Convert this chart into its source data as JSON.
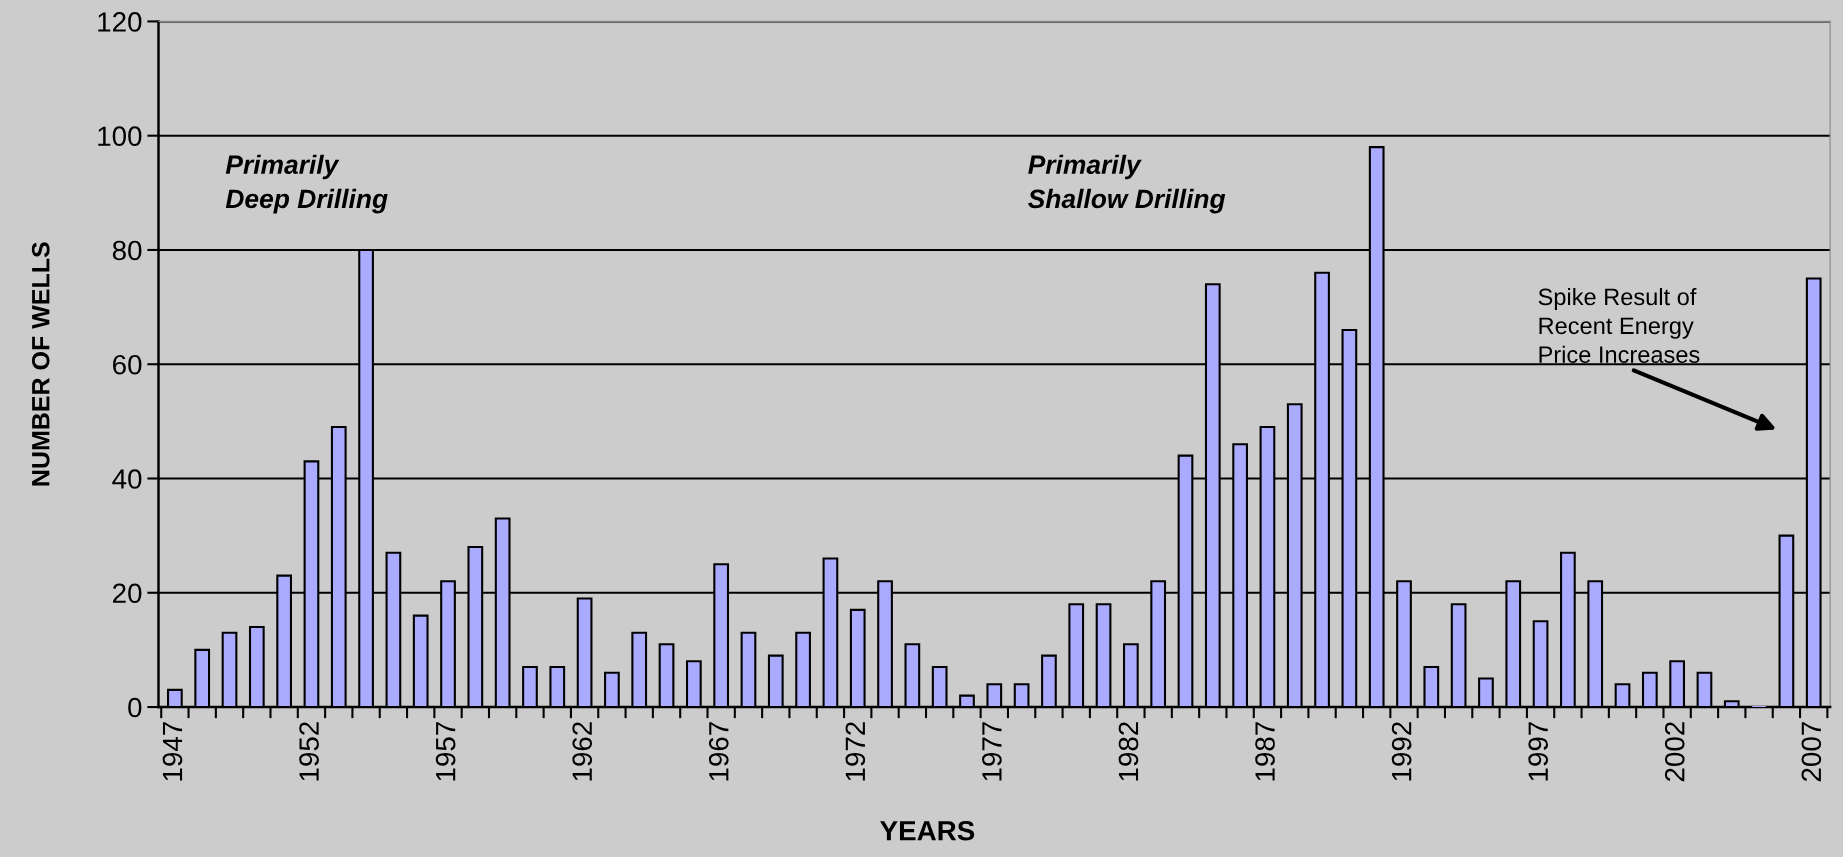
{
  "chart_data": {
    "type": "bar",
    "categories": [
      "1947",
      null,
      null,
      null,
      null,
      "1952",
      null,
      null,
      null,
      null,
      "1957",
      null,
      null,
      null,
      null,
      "1962",
      null,
      null,
      null,
      null,
      "1967",
      null,
      null,
      null,
      null,
      "1972",
      null,
      null,
      null,
      null,
      "1977",
      null,
      null,
      null,
      null,
      "1982",
      null,
      null,
      null,
      null,
      "1987",
      null,
      null,
      null,
      null,
      "1992",
      null,
      null,
      null,
      null,
      "1997",
      null,
      null,
      null,
      null,
      "2002",
      null,
      null,
      null,
      null,
      "2007"
    ],
    "values": [
      3,
      10,
      13,
      14,
      23,
      43,
      49,
      80,
      27,
      16,
      22,
      28,
      33,
      7,
      7,
      19,
      6,
      13,
      11,
      8,
      25,
      13,
      9,
      13,
      26,
      17,
      22,
      11,
      7,
      2,
      4,
      4,
      9,
      18,
      18,
      11,
      22,
      44,
      74,
      46,
      49,
      53,
      76,
      66,
      98,
      22,
      7,
      18,
      5,
      22,
      15,
      27,
      22,
      4,
      6,
      8,
      6,
      1,
      0,
      30,
      75
    ],
    "color": "#aaaaff",
    "xlabel": "YEARS",
    "ylabel": "NUMBER OF WELLS",
    "ylim": [
      0,
      120
    ],
    "yticks": [
      0,
      20,
      40,
      60,
      80,
      100,
      120
    ],
    "grid": "y",
    "legend": false,
    "annotations": [
      "Primarily\nDeep Drilling",
      "Primarily\nShallow Drilling",
      "Spike Result of\nRecent Energy\nPrice Increases"
    ]
  }
}
